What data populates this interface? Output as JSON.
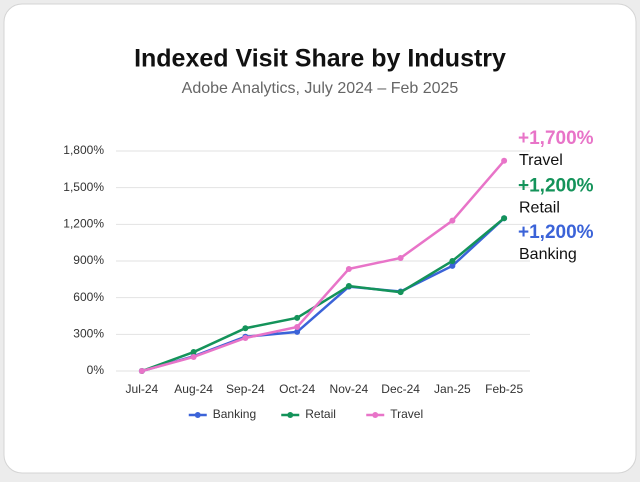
{
  "chart_data": {
    "type": "line",
    "title": "Indexed Visit Share by Industry",
    "subtitle": "Adobe Analytics, July 2024 – Feb 2025",
    "categories": [
      "Jul-24",
      "Aug-24",
      "Sep-24",
      "Oct-24",
      "Nov-24",
      "Dec-24",
      "Jan-25",
      "Feb-25"
    ],
    "series": [
      {
        "name": "Banking",
        "color": "#3b63d8",
        "values": [
          0,
          120,
          280,
          320,
          690,
          650,
          860,
          1250
        ]
      },
      {
        "name": "Retail",
        "color": "#14935a",
        "values": [
          0,
          155,
          350,
          435,
          695,
          645,
          900,
          1250
        ]
      },
      {
        "name": "Travel",
        "color": "#e874c8",
        "values": [
          0,
          115,
          270,
          360,
          835,
          925,
          1230,
          1720
        ]
      }
    ],
    "ylim": [
      0,
      1800
    ],
    "yticks": [
      {
        "value": 0,
        "label": "0%"
      },
      {
        "value": 300,
        "label": "300%"
      },
      {
        "value": 600,
        "label": "600%"
      },
      {
        "value": 900,
        "label": "900%"
      },
      {
        "value": 1200,
        "label": "1,200%"
      },
      {
        "value": 1500,
        "label": "1,500%"
      },
      {
        "value": 1800,
        "label": "1,800%"
      }
    ],
    "grid": true,
    "legend": "bottom",
    "annotations": [
      {
        "text": "+1,700%",
        "label": "Travel",
        "color": "#e874c8",
        "y": 1720
      },
      {
        "text": "+1,200%",
        "label": "Retail",
        "color": "#14935a",
        "y": 1330
      },
      {
        "text": "+1,200%",
        "label": "Banking",
        "color": "#3b63d8",
        "y": 950
      }
    ]
  }
}
